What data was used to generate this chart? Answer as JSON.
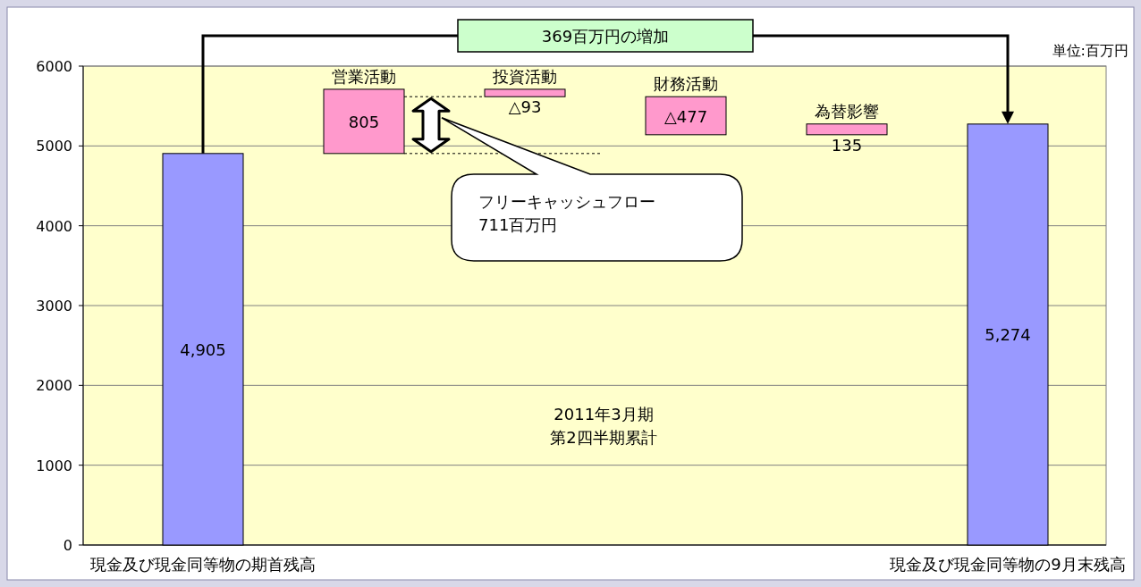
{
  "chart_data": {
    "type": "bar",
    "categories": [
      "現金及び現金同等物の期首残高",
      "営業活動",
      "投資活動",
      "財務活動",
      "為替影響",
      "現金及び現金同等物の9月末残高"
    ],
    "values": [
      4905,
      805,
      -93,
      -477,
      135,
      5274
    ],
    "base": [
      0,
      4905,
      5710,
      5617,
      5140,
      0
    ],
    "colors": [
      "#9999ff",
      "#ff99cc",
      "#ff99cc",
      "#ff99cc",
      "#ff99cc",
      "#9999ff"
    ],
    "value_labels": [
      "4,905",
      "805",
      "△93",
      "△477",
      "135",
      "5,274"
    ],
    "ylim": [
      0,
      6000
    ],
    "yticks": [
      0,
      1000,
      2000,
      3000,
      4000,
      5000,
      6000
    ],
    "grid": "y",
    "annotations": [
      "369百万円の増加",
      "単位:百万円",
      "フリーキャッシュフロー",
      "711百万円",
      "2011年3月期",
      "第2四半期累計"
    ]
  }
}
